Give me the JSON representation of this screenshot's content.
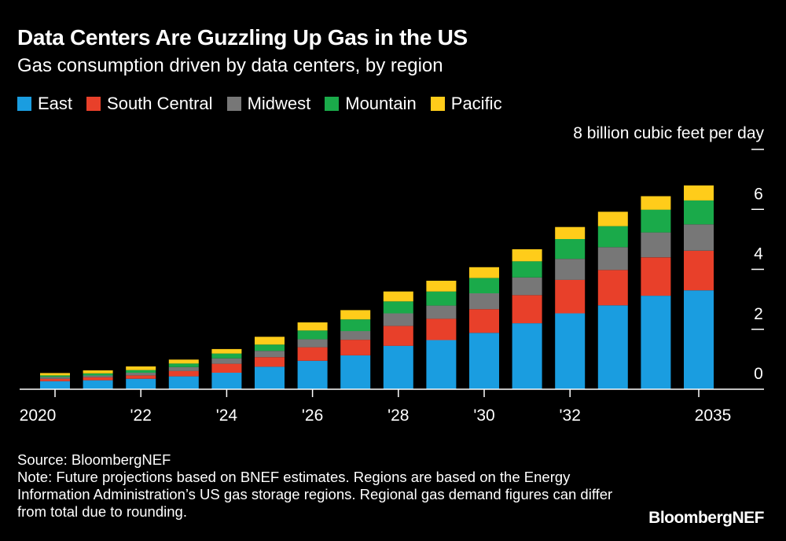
{
  "title": "Data Centers Are Guzzling Up Gas in the US",
  "subtitle": "Gas consumption driven by data centers, by region",
  "source": "Source: BloombergNEF",
  "note": "Note: Future projections based on BNEF estimates. Regions are based on the Energy Information Administration’s US gas storage regions. Regional gas demand figures can differ from total due to rounding.",
  "brand": "BloombergNEF",
  "chart_data": {
    "type": "bar",
    "stacked": true,
    "title": "Data Centers Are Guzzling Up Gas in the US",
    "subtitle": "Gas consumption driven by data centers, by region",
    "ylabel": "8 billion cubic feet per day",
    "ylim": [
      0,
      8
    ],
    "yticks": [
      0,
      2,
      4,
      6,
      8
    ],
    "ytick_labels": [
      "0",
      "2",
      "4",
      "6",
      ""
    ],
    "categories": [
      "2020",
      "2021",
      "2022",
      "2023",
      "2024",
      "2025",
      "2026",
      "2027",
      "2028",
      "2029",
      "2030",
      "2031",
      "2032",
      "2033",
      "2034",
      "2035"
    ],
    "xtick_labels": [
      "2020",
      "",
      "'22",
      "",
      "'24",
      "",
      "'26",
      "",
      "'28",
      "",
      "'30",
      "",
      "'32",
      "",
      "",
      "2035"
    ],
    "legend": "top-left",
    "grid": false,
    "series": [
      {
        "name": "East",
        "color": "#1a9de0",
        "values": [
          0.27,
          0.3,
          0.35,
          0.43,
          0.55,
          0.75,
          0.95,
          1.13,
          1.45,
          1.64,
          1.88,
          2.2,
          2.53,
          2.8,
          3.12,
          3.3
        ]
      },
      {
        "name": "South Central",
        "color": "#e8402a",
        "values": [
          0.08,
          0.1,
          0.11,
          0.18,
          0.3,
          0.32,
          0.45,
          0.52,
          0.66,
          0.71,
          0.79,
          0.94,
          1.12,
          1.18,
          1.28,
          1.32
        ]
      },
      {
        "name": "Midwest",
        "color": "#777777",
        "values": [
          0.06,
          0.06,
          0.09,
          0.13,
          0.18,
          0.21,
          0.27,
          0.29,
          0.42,
          0.44,
          0.53,
          0.59,
          0.7,
          0.76,
          0.83,
          0.88
        ]
      },
      {
        "name": "Mountain",
        "color": "#1aaa4a",
        "values": [
          0.05,
          0.07,
          0.09,
          0.12,
          0.16,
          0.21,
          0.29,
          0.39,
          0.4,
          0.47,
          0.51,
          0.54,
          0.66,
          0.7,
          0.76,
          0.8
        ]
      },
      {
        "name": "Pacific",
        "color": "#ffcc1a",
        "values": [
          0.08,
          0.1,
          0.12,
          0.13,
          0.15,
          0.26,
          0.27,
          0.31,
          0.33,
          0.36,
          0.36,
          0.4,
          0.4,
          0.48,
          0.45,
          0.5
        ]
      }
    ]
  }
}
